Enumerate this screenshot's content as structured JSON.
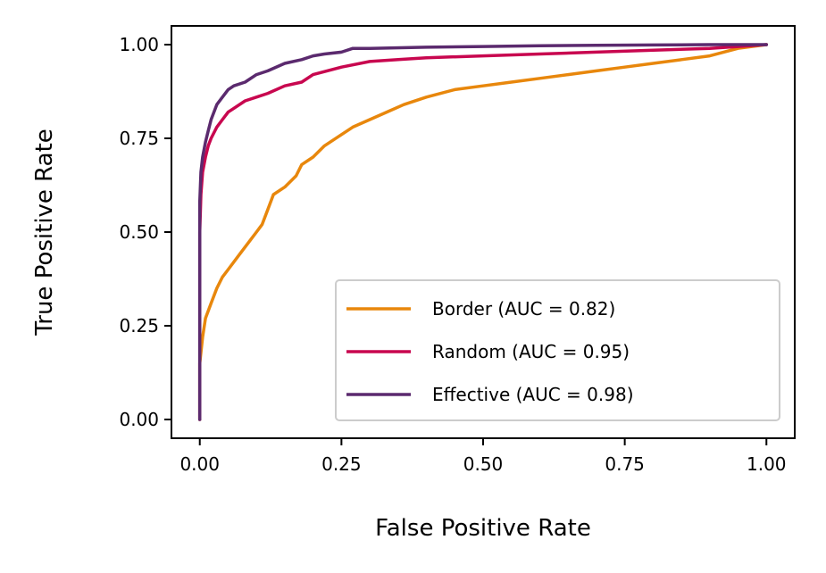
{
  "chart_data": {
    "type": "line",
    "xlabel": "False Positive Rate",
    "ylabel": "True Positive Rate",
    "xlim": [
      -0.05,
      1.05
    ],
    "ylim": [
      -0.05,
      1.05
    ],
    "xticks": [
      0.0,
      0.25,
      0.5,
      0.75,
      1.0
    ],
    "yticks": [
      0.0,
      0.25,
      0.5,
      0.75,
      1.0
    ],
    "xtick_labels": [
      "0.00",
      "0.25",
      "0.50",
      "0.75",
      "1.00"
    ],
    "ytick_labels": [
      "0.00",
      "0.25",
      "0.50",
      "0.75",
      "1.00"
    ],
    "grid": false,
    "legend_position": "lower-right",
    "series": [
      {
        "name": "Border (AUC = 0.82)",
        "color": "#E8870C",
        "x": [
          0.0,
          0.0,
          0.005,
          0.01,
          0.02,
          0.03,
          0.04,
          0.05,
          0.07,
          0.09,
          0.1,
          0.11,
          0.12,
          0.13,
          0.15,
          0.17,
          0.18,
          0.2,
          0.22,
          0.25,
          0.27,
          0.3,
          0.33,
          0.36,
          0.4,
          0.45,
          0.5,
          0.55,
          0.6,
          0.65,
          0.7,
          0.75,
          0.8,
          0.85,
          0.9,
          0.95,
          1.0
        ],
        "y": [
          0.0,
          0.15,
          0.22,
          0.27,
          0.31,
          0.35,
          0.38,
          0.4,
          0.44,
          0.48,
          0.5,
          0.52,
          0.56,
          0.6,
          0.62,
          0.65,
          0.68,
          0.7,
          0.73,
          0.76,
          0.78,
          0.8,
          0.82,
          0.84,
          0.86,
          0.88,
          0.89,
          0.9,
          0.91,
          0.92,
          0.93,
          0.94,
          0.95,
          0.96,
          0.97,
          0.99,
          1.0
        ]
      },
      {
        "name": "Random (AUC = 0.95)",
        "color": "#C8074F",
        "x": [
          0.0,
          0.0,
          0.002,
          0.005,
          0.01,
          0.015,
          0.02,
          0.03,
          0.04,
          0.05,
          0.06,
          0.08,
          0.1,
          0.12,
          0.15,
          0.18,
          0.2,
          0.25,
          0.3,
          0.35,
          0.4,
          0.5,
          0.6,
          0.7,
          0.8,
          0.9,
          1.0
        ],
        "y": [
          0.0,
          0.5,
          0.6,
          0.66,
          0.7,
          0.73,
          0.75,
          0.78,
          0.8,
          0.82,
          0.83,
          0.85,
          0.86,
          0.87,
          0.89,
          0.9,
          0.92,
          0.94,
          0.955,
          0.96,
          0.965,
          0.97,
          0.975,
          0.98,
          0.985,
          0.99,
          1.0
        ]
      },
      {
        "name": "Effective (AUC = 0.98)",
        "color": "#5B2A6E",
        "x": [
          0.0,
          0.0,
          0.002,
          0.005,
          0.01,
          0.015,
          0.02,
          0.03,
          0.04,
          0.05,
          0.06,
          0.08,
          0.1,
          0.12,
          0.15,
          0.18,
          0.2,
          0.22,
          0.25,
          0.27,
          0.3,
          0.4,
          0.5,
          0.6,
          0.7,
          0.8,
          0.9,
          1.0
        ],
        "y": [
          0.0,
          0.58,
          0.66,
          0.7,
          0.74,
          0.77,
          0.8,
          0.84,
          0.86,
          0.88,
          0.89,
          0.9,
          0.92,
          0.93,
          0.95,
          0.96,
          0.97,
          0.975,
          0.98,
          0.99,
          0.99,
          0.993,
          0.995,
          0.997,
          0.998,
          0.999,
          1.0,
          1.0
        ]
      }
    ]
  }
}
